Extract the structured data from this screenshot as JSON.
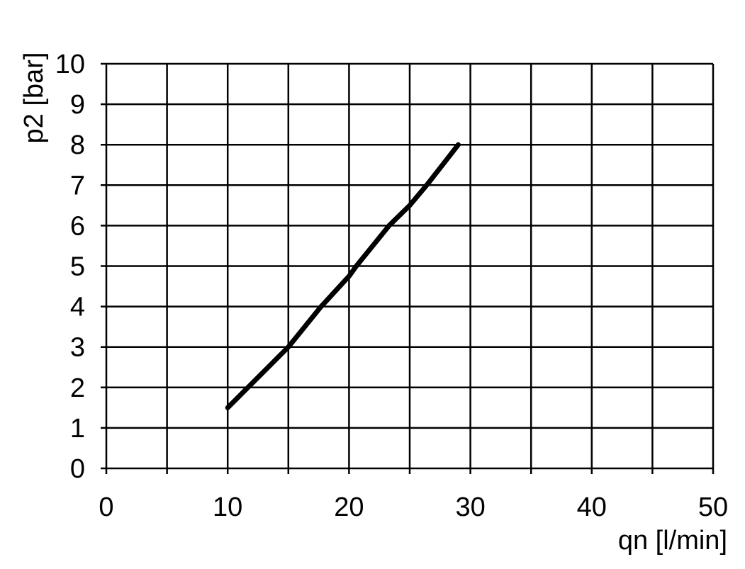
{
  "chart_data": {
    "type": "line",
    "title": "",
    "xlabel": "qn [l/min]",
    "ylabel": "p2 [bar]",
    "xlim": [
      0,
      50
    ],
    "ylim": [
      0,
      10
    ],
    "xticks": [
      0,
      10,
      20,
      30,
      40,
      50
    ],
    "xgrid_step": 5,
    "yticks": [
      0,
      1,
      2,
      3,
      4,
      5,
      6,
      7,
      8,
      9,
      10
    ],
    "grid": true,
    "legend": "none",
    "line_color": "#000000",
    "grid_color": "#000000",
    "series": [
      {
        "x": [
          10,
          15,
          17.7,
          20,
          20.6,
          23.3,
          25,
          26.4,
          29
        ],
        "y": [
          1.5,
          3.0,
          4.0,
          4.75,
          5.0,
          6.0,
          6.5,
          7.0,
          8.0
        ]
      }
    ]
  }
}
